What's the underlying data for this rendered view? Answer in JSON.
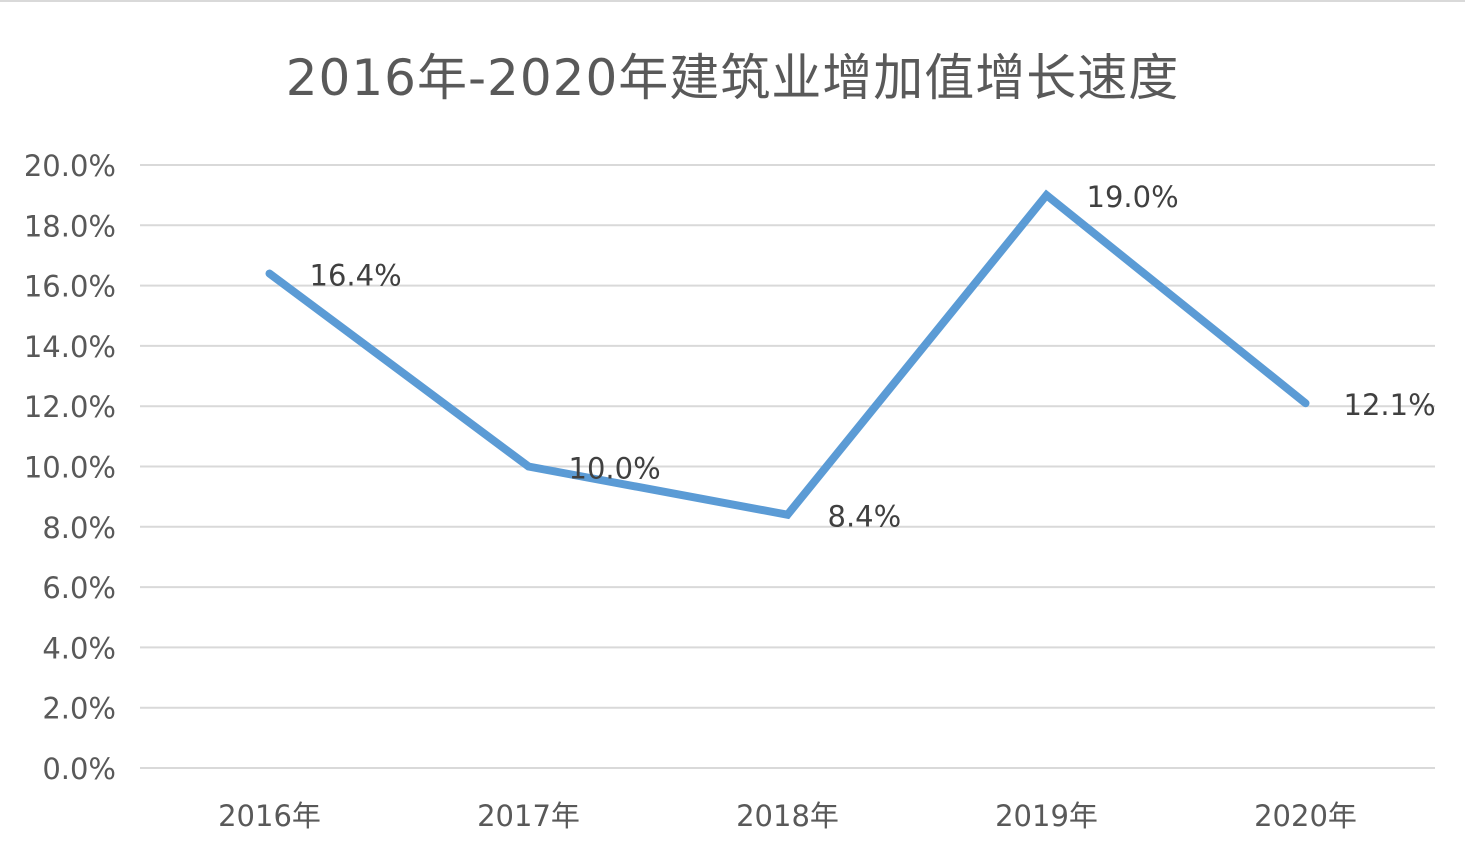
{
  "chart_data": {
    "type": "line",
    "title": "2016年-2020年建筑业增加值增长速度",
    "categories": [
      "2016年",
      "2017年",
      "2018年",
      "2019年",
      "2020年"
    ],
    "series": [
      {
        "values": [
          16.4,
          10.0,
          8.4,
          19.0,
          12.1
        ],
        "data_labels": [
          "16.4%",
          "10.0%",
          "8.4%",
          "19.0%",
          "12.1%"
        ],
        "color": "#5b9bd5"
      }
    ],
    "ylim": [
      0,
      20
    ],
    "yticks": [
      0,
      2,
      4,
      6,
      8,
      10,
      12,
      14,
      16,
      18,
      20
    ],
    "ytick_labels": [
      "0.0%",
      "2.0%",
      "4.0%",
      "6.0%",
      "8.0%",
      "10.0%",
      "12.0%",
      "14.0%",
      "16.0%",
      "18.0%",
      "20.0%"
    ],
    "grid": true,
    "legend": "none",
    "gridline_color": "#d9d9d9",
    "text_color": "#595959"
  }
}
